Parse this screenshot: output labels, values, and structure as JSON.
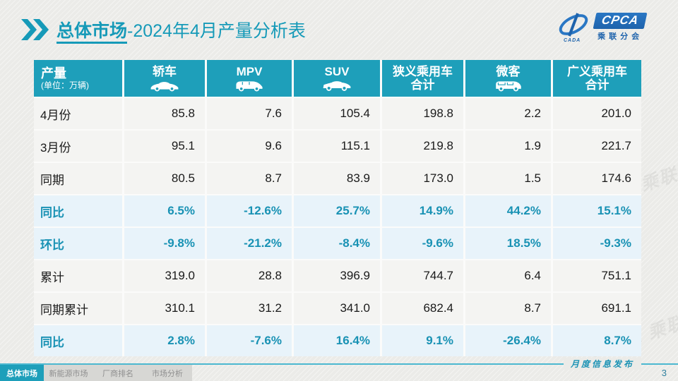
{
  "colors": {
    "accent_teal": "#169ab8",
    "header_bg": "#1e9fba",
    "percent_row_bg": "#e8f3fa",
    "percent_text": "#1992b4",
    "logo_blue": "#1e63ac"
  },
  "header": {
    "title_highlight": "总体市场",
    "title_rest": "-2024年4月产量分析表"
  },
  "logo": {
    "cpca": "CPCA",
    "sub": "乘联分会",
    "cada": "CADA"
  },
  "watermark": {
    "text": "CPCA 乘联分会"
  },
  "table": {
    "corner": {
      "title": "产量",
      "unit": "(单位：万辆)"
    },
    "columns": [
      {
        "line1": "轿车",
        "icon": "sedan-icon"
      },
      {
        "line1": "MPV",
        "icon": "mpv-icon"
      },
      {
        "line1": "SUV",
        "icon": "suv-icon"
      },
      {
        "line1": "狭义乘用车",
        "line2": "合计"
      },
      {
        "line1": "微客",
        "icon": "microvan-icon"
      },
      {
        "line1": "广义乘用车",
        "line2": "合计"
      }
    ],
    "rows": [
      {
        "label": "4月份",
        "kind": "data",
        "values": [
          "85.8",
          "7.6",
          "105.4",
          "198.8",
          "2.2",
          "201.0"
        ]
      },
      {
        "label": "3月份",
        "kind": "data",
        "values": [
          "95.1",
          "9.6",
          "115.1",
          "219.8",
          "1.9",
          "221.7"
        ]
      },
      {
        "label": "同期",
        "kind": "data",
        "values": [
          "80.5",
          "8.7",
          "83.9",
          "173.0",
          "1.5",
          "174.6"
        ]
      },
      {
        "label": "同比",
        "kind": "pct",
        "values": [
          "6.5%",
          "-12.6%",
          "25.7%",
          "14.9%",
          "44.2%",
          "15.1%"
        ]
      },
      {
        "label": "环比",
        "kind": "pct",
        "values": [
          "-9.8%",
          "-21.2%",
          "-8.4%",
          "-9.6%",
          "18.5%",
          "-9.3%"
        ]
      },
      {
        "label": "累计",
        "kind": "data",
        "values": [
          "319.0",
          "28.8",
          "396.9",
          "744.7",
          "6.4",
          "751.1"
        ]
      },
      {
        "label": "同期累计",
        "kind": "data",
        "values": [
          "310.1",
          "31.2",
          "341.0",
          "682.4",
          "8.7",
          "691.1"
        ]
      },
      {
        "label": "同比",
        "kind": "pct",
        "values": [
          "2.8%",
          "-7.6%",
          "16.4%",
          "9.1%",
          "-26.4%",
          "8.7%"
        ]
      }
    ]
  },
  "footer": {
    "tabs": [
      {
        "label": "总体市场",
        "active": true
      },
      {
        "label": "新能源市场",
        "active": false
      },
      {
        "label": "厂商排名",
        "active": false
      },
      {
        "label": "市场分析",
        "active": false
      }
    ],
    "publish_label": "月度信息发布",
    "page_number": "3"
  }
}
